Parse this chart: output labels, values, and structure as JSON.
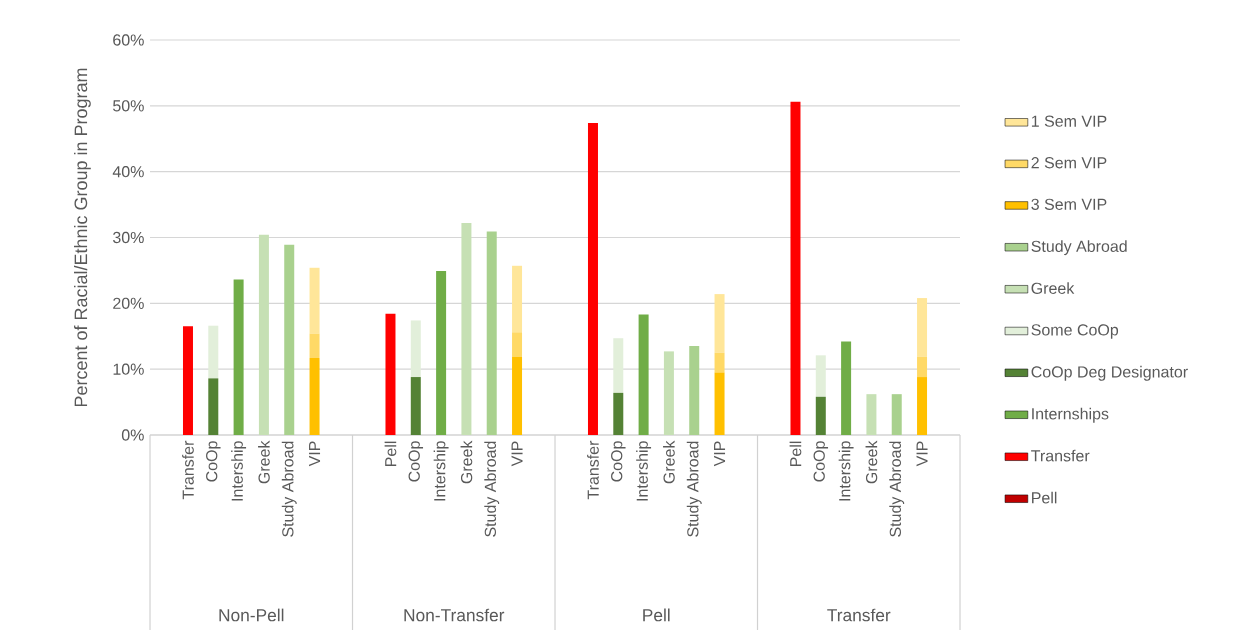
{
  "chart_data": {
    "type": "bar",
    "stacked": true,
    "ylabel": "Percent of Racial/Ethnic Group in Program",
    "categories": [
      "Transfer",
      "CoOp",
      "Intership",
      "Greek",
      "Study Abroad",
      "VIP",
      "Pell",
      "CoOp",
      "Intership",
      "Greek",
      "Study Abroad",
      "VIP",
      "Transfer",
      "CoOp",
      "Intership",
      "Greek",
      "Study Abroad",
      "VIP",
      "Pell",
      "CoOp",
      "Intership",
      "Greek",
      "Study Abroad",
      "VIP"
    ],
    "annotations": [
      "Non-Pell",
      "Non-Transfer",
      "Pell",
      "Transfer"
    ],
    "series": [
      {
        "name": "Pell",
        "color": "#c00000",
        "values": [
          null,
          null,
          null,
          null,
          null,
          null,
          null,
          null,
          null,
          null,
          null,
          null,
          null,
          null,
          null,
          null,
          null,
          null,
          null,
          null,
          null,
          null,
          null,
          null
        ]
      },
      {
        "name": "Transfer",
        "color": "#ff0000",
        "values": [
          16.5,
          null,
          null,
          null,
          null,
          null,
          18.4,
          null,
          null,
          null,
          null,
          null,
          47.4,
          null,
          null,
          null,
          null,
          null,
          50.6,
          null,
          null,
          null,
          null,
          null
        ]
      },
      {
        "name": "Internships",
        "color": "#70ad47",
        "values": [
          null,
          null,
          23.6,
          null,
          null,
          null,
          null,
          null,
          24.9,
          null,
          null,
          null,
          null,
          null,
          18.3,
          null,
          null,
          null,
          null,
          null,
          14.2,
          null,
          null,
          null
        ]
      },
      {
        "name": "CoOp Deg Designator",
        "color": "#548235",
        "values": [
          null,
          8.6,
          null,
          null,
          null,
          null,
          null,
          8.8,
          null,
          null,
          null,
          null,
          null,
          6.4,
          null,
          null,
          null,
          null,
          null,
          5.8,
          null,
          null,
          null,
          null
        ]
      },
      {
        "name": "Some CoOp",
        "color": "#e2efda",
        "values": [
          null,
          8.0,
          null,
          null,
          null,
          null,
          null,
          8.6,
          null,
          null,
          null,
          null,
          null,
          8.3,
          null,
          null,
          null,
          null,
          null,
          6.3,
          null,
          null,
          null,
          null
        ]
      },
      {
        "name": "Greek",
        "color": "#c6e0b4",
        "values": [
          null,
          null,
          null,
          30.4,
          null,
          null,
          null,
          null,
          null,
          32.2,
          null,
          null,
          null,
          null,
          null,
          12.7,
          null,
          null,
          null,
          null,
          null,
          6.2,
          null,
          null
        ]
      },
      {
        "name": "Study Abroad",
        "color": "#a9d18e",
        "values": [
          null,
          null,
          null,
          null,
          28.9,
          null,
          null,
          null,
          null,
          null,
          30.9,
          null,
          null,
          null,
          null,
          null,
          13.5,
          null,
          null,
          null,
          null,
          null,
          6.2,
          null
        ]
      },
      {
        "name": "3 Sem VIP",
        "color": "#ffc000",
        "values": [
          null,
          null,
          null,
          null,
          null,
          11.7,
          null,
          null,
          null,
          null,
          null,
          11.9,
          null,
          null,
          null,
          null,
          null,
          9.5,
          null,
          null,
          null,
          null,
          null,
          8.8
        ]
      },
      {
        "name": "2 Sem VIP",
        "color": "#ffd966",
        "values": [
          null,
          null,
          null,
          null,
          null,
          3.7,
          null,
          null,
          null,
          null,
          null,
          3.7,
          null,
          null,
          null,
          null,
          null,
          3.0,
          null,
          null,
          null,
          null,
          null,
          3.1
        ]
      },
      {
        "name": "1 Sem VIP",
        "color": "#ffe699",
        "values": [
          null,
          null,
          null,
          null,
          null,
          10.0,
          null,
          null,
          null,
          null,
          null,
          10.1,
          null,
          null,
          null,
          null,
          null,
          8.9,
          null,
          null,
          null,
          null,
          null,
          8.9
        ]
      }
    ],
    "ylim": [
      0,
      60
    ],
    "yticks": [
      {
        "value": 0,
        "label": "0%"
      },
      {
        "value": 10,
        "label": "10%"
      },
      {
        "value": 20,
        "label": "20%"
      },
      {
        "value": 30,
        "label": "30%"
      },
      {
        "value": 40,
        "label": "40%"
      },
      {
        "value": 50,
        "label": "50%"
      },
      {
        "value": 60,
        "label": "60%"
      }
    ],
    "grid": "y",
    "legend": "right"
  }
}
